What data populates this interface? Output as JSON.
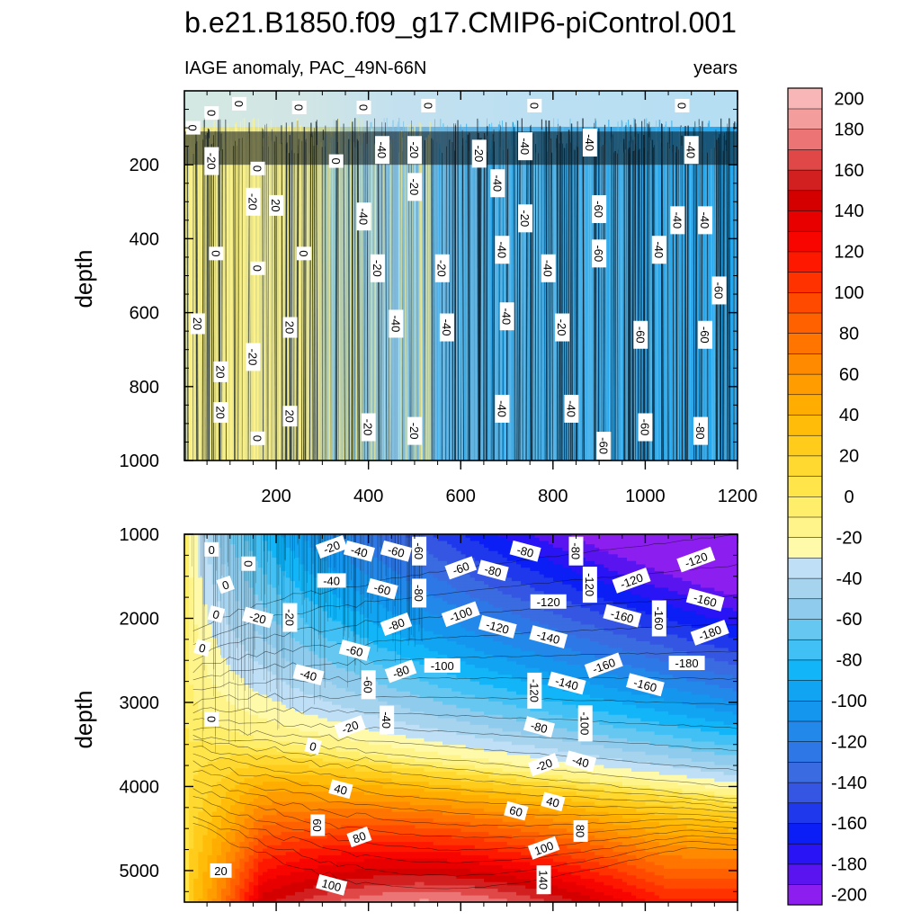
{
  "chart_data": [
    {
      "type": "heatmap",
      "title": "b.e21.B1850.f09_g17.CMIP6-piControl.001",
      "subtitle_left": "IAGE anomaly, PAC_49N-66N",
      "subtitle_right": "years",
      "ylabel": "depth",
      "xlabel": "",
      "xlim": [
        1,
        1200
      ],
      "ylim": [
        0,
        1000
      ],
      "y_reversed": true,
      "x_ticks": [
        200,
        400,
        600,
        800,
        1000,
        1200
      ],
      "x_tick_labels": [
        "200",
        "400",
        "600",
        "800",
        "1000",
        "1200"
      ],
      "y_ticks": [
        200,
        400,
        600,
        800,
        1000
      ],
      "y_tick_labels": [
        "200",
        "400",
        "600",
        "800",
        "1000"
      ],
      "contour_labels": [
        {
          "text": "0",
          "x": 60,
          "y": 60
        },
        {
          "text": "0",
          "x": 120,
          "y": 35
        },
        {
          "text": "0",
          "x": 250,
          "y": 45
        },
        {
          "text": "0",
          "x": 390,
          "y": 45
        },
        {
          "text": "0",
          "x": 530,
          "y": 40
        },
        {
          "text": "0",
          "x": 760,
          "y": 40
        },
        {
          "text": "0",
          "x": 1080,
          "y": 40
        },
        {
          "text": "0",
          "x": 20,
          "y": 100
        },
        {
          "text": "-20",
          "x": 60,
          "y": 190
        },
        {
          "text": "0",
          "x": 160,
          "y": 210
        },
        {
          "text": "0",
          "x": 330,
          "y": 190
        },
        {
          "text": "-40",
          "x": 430,
          "y": 160
        },
        {
          "text": "-20",
          "x": 500,
          "y": 160
        },
        {
          "text": "-20",
          "x": 640,
          "y": 170
        },
        {
          "text": "-40",
          "x": 740,
          "y": 150
        },
        {
          "text": "-40",
          "x": 880,
          "y": 140
        },
        {
          "text": "-40",
          "x": 1100,
          "y": 160
        },
        {
          "text": "-20",
          "x": 150,
          "y": 300
        },
        {
          "text": "20",
          "x": 200,
          "y": 310
        },
        {
          "text": "-40",
          "x": 390,
          "y": 340
        },
        {
          "text": "-20",
          "x": 500,
          "y": 260
        },
        {
          "text": "-40",
          "x": 680,
          "y": 250
        },
        {
          "text": "-20",
          "x": 740,
          "y": 345
        },
        {
          "text": "-60",
          "x": 900,
          "y": 320
        },
        {
          "text": "-40",
          "x": 1070,
          "y": 350
        },
        {
          "text": "-40",
          "x": 1130,
          "y": 350
        },
        {
          "text": "0",
          "x": 70,
          "y": 440
        },
        {
          "text": "0",
          "x": 160,
          "y": 480
        },
        {
          "text": "0",
          "x": 260,
          "y": 440
        },
        {
          "text": "-20",
          "x": 420,
          "y": 480
        },
        {
          "text": "-20",
          "x": 560,
          "y": 480
        },
        {
          "text": "-40",
          "x": 690,
          "y": 430
        },
        {
          "text": "-40",
          "x": 790,
          "y": 480
        },
        {
          "text": "-60",
          "x": 900,
          "y": 440
        },
        {
          "text": "-40",
          "x": 1030,
          "y": 430
        },
        {
          "text": "-60",
          "x": 1160,
          "y": 540
        },
        {
          "text": "20",
          "x": 30,
          "y": 630
        },
        {
          "text": "20",
          "x": 80,
          "y": 760
        },
        {
          "text": "-20",
          "x": 150,
          "y": 720
        },
        {
          "text": "20",
          "x": 230,
          "y": 640
        },
        {
          "text": "-40",
          "x": 460,
          "y": 630
        },
        {
          "text": "-40",
          "x": 570,
          "y": 640
        },
        {
          "text": "-40",
          "x": 700,
          "y": 610
        },
        {
          "text": "-20",
          "x": 820,
          "y": 640
        },
        {
          "text": "-60",
          "x": 990,
          "y": 660
        },
        {
          "text": "-60",
          "x": 1130,
          "y": 660
        },
        {
          "text": "20",
          "x": 80,
          "y": 870
        },
        {
          "text": "0",
          "x": 160,
          "y": 940
        },
        {
          "text": "20",
          "x": 230,
          "y": 880
        },
        {
          "text": "-20",
          "x": 400,
          "y": 910
        },
        {
          "text": "-20",
          "x": 500,
          "y": 920
        },
        {
          "text": "-40",
          "x": 690,
          "y": 860
        },
        {
          "text": "-40",
          "x": 840,
          "y": 860
        },
        {
          "text": "-60",
          "x": 1000,
          "y": 910
        },
        {
          "text": "-60",
          "x": 910,
          "y": 960
        },
        {
          "text": "-80",
          "x": 1120,
          "y": 920
        }
      ]
    },
    {
      "type": "heatmap",
      "title": "",
      "ylabel": "depth",
      "xlabel": "",
      "xlim": [
        1,
        1200
      ],
      "ylim": [
        1000,
        5375
      ],
      "y_reversed": true,
      "x_ticks": [
        200,
        400,
        600,
        800,
        1000,
        1200
      ],
      "y_ticks": [
        1000,
        2000,
        3000,
        4000,
        5000
      ],
      "y_tick_labels": [
        "1000",
        "2000",
        "3000",
        "4000",
        "5000"
      ],
      "contour_labels": [
        {
          "text": "0",
          "x": 60,
          "y": 1180
        },
        {
          "text": "0",
          "x": 140,
          "y": 1350
        },
        {
          "text": "0",
          "x": 90,
          "y": 1600
        },
        {
          "text": "0",
          "x": 70,
          "y": 1950
        },
        {
          "text": "0",
          "x": 40,
          "y": 2350
        },
        {
          "text": "0",
          "x": 60,
          "y": 3200
        },
        {
          "text": "-20",
          "x": 320,
          "y": 1150
        },
        {
          "text": "-40",
          "x": 380,
          "y": 1200
        },
        {
          "text": "-60",
          "x": 460,
          "y": 1200
        },
        {
          "text": "-60",
          "x": 510,
          "y": 1200
        },
        {
          "text": "-60",
          "x": 600,
          "y": 1400
        },
        {
          "text": "-80",
          "x": 670,
          "y": 1430
        },
        {
          "text": "-80",
          "x": 740,
          "y": 1200
        },
        {
          "text": "-80",
          "x": 850,
          "y": 1200
        },
        {
          "text": "-120",
          "x": 1110,
          "y": 1300
        },
        {
          "text": "-40",
          "x": 320,
          "y": 1550
        },
        {
          "text": "-60",
          "x": 430,
          "y": 1650
        },
        {
          "text": "-80",
          "x": 510,
          "y": 1700
        },
        {
          "text": "-100",
          "x": 600,
          "y": 1950
        },
        {
          "text": "-120",
          "x": 680,
          "y": 2100
        },
        {
          "text": "-120",
          "x": 790,
          "y": 1800
        },
        {
          "text": "-120",
          "x": 880,
          "y": 1600
        },
        {
          "text": "-120",
          "x": 970,
          "y": 1550
        },
        {
          "text": "-160",
          "x": 1130,
          "y": 1780
        },
        {
          "text": "-20",
          "x": 160,
          "y": 1990
        },
        {
          "text": "-20",
          "x": 230,
          "y": 1990
        },
        {
          "text": "-80",
          "x": 460,
          "y": 2070
        },
        {
          "text": "-140",
          "x": 790,
          "y": 2220
        },
        {
          "text": "-160",
          "x": 950,
          "y": 1970
        },
        {
          "text": "-160",
          "x": 1030,
          "y": 2000
        },
        {
          "text": "-180",
          "x": 1140,
          "y": 2170
        },
        {
          "text": "-60",
          "x": 370,
          "y": 2380
        },
        {
          "text": "-40",
          "x": 270,
          "y": 2670
        },
        {
          "text": "-60",
          "x": 400,
          "y": 2790
        },
        {
          "text": "-80",
          "x": 470,
          "y": 2630
        },
        {
          "text": "-100",
          "x": 560,
          "y": 2560
        },
        {
          "text": "-140",
          "x": 830,
          "y": 2770
        },
        {
          "text": "-120",
          "x": 760,
          "y": 2860
        },
        {
          "text": "-160",
          "x": 910,
          "y": 2560
        },
        {
          "text": "-160",
          "x": 1000,
          "y": 2790
        },
        {
          "text": "-180",
          "x": 1090,
          "y": 2530
        },
        {
          "text": "-40",
          "x": 440,
          "y": 3210
        },
        {
          "text": "-20",
          "x": 360,
          "y": 3290
        },
        {
          "text": "0",
          "x": 280,
          "y": 3520
        },
        {
          "text": "-80",
          "x": 770,
          "y": 3290
        },
        {
          "text": "-100",
          "x": 870,
          "y": 3250
        },
        {
          "text": "-20",
          "x": 780,
          "y": 3740
        },
        {
          "text": "-40",
          "x": 860,
          "y": 3700
        },
        {
          "text": "40",
          "x": 340,
          "y": 4030
        },
        {
          "text": "60",
          "x": 290,
          "y": 4460
        },
        {
          "text": "80",
          "x": 380,
          "y": 4600
        },
        {
          "text": "60",
          "x": 720,
          "y": 4290
        },
        {
          "text": "40",
          "x": 800,
          "y": 4180
        },
        {
          "text": "80",
          "x": 860,
          "y": 4530
        },
        {
          "text": "100",
          "x": 780,
          "y": 4730
        },
        {
          "text": "20",
          "x": 80,
          "y": 5000
        },
        {
          "text": "100",
          "x": 320,
          "y": 5170
        },
        {
          "text": "140",
          "x": 780,
          "y": 5110
        }
      ]
    },
    {
      "type": "colorbar",
      "levels": [
        -200,
        -190,
        -180,
        -170,
        -160,
        -150,
        -140,
        -130,
        -120,
        -110,
        -100,
        -90,
        -80,
        -70,
        -60,
        -50,
        -40,
        -30,
        -20,
        -10,
        0,
        10,
        20,
        30,
        40,
        50,
        60,
        70,
        80,
        90,
        100,
        110,
        120,
        130,
        140,
        150,
        160,
        170,
        180,
        190,
        200
      ],
      "tick_labels": [
        "-200",
        "-180",
        "-160",
        "-140",
        "-120",
        "-100",
        "-80",
        "-60",
        "-40",
        "-20",
        "0",
        "20",
        "40",
        "60",
        "80",
        "100",
        "120",
        "140",
        "160",
        "180",
        "200"
      ],
      "colors": [
        "#8d1ef0",
        "#5a14f0",
        "#2814f5",
        "#0a1ef5",
        "#2038ec",
        "#3456e2",
        "#3a6be0",
        "#2d78e6",
        "#2288ea",
        "#1496ee",
        "#10a4f3",
        "#12b6f8",
        "#40c0f5",
        "#66c8f0",
        "#8ecbec",
        "#a6d3ee",
        "#bedff5",
        "#fffaaa",
        "#fff48a",
        "#ffee6a",
        "#ffe44a",
        "#ffd830",
        "#ffcc1c",
        "#ffbc08",
        "#ffad00",
        "#ff9c00",
        "#ff8a00",
        "#ff7500",
        "#ff6000",
        "#ff4a00",
        "#ff3200",
        "#ff1800",
        "#f80500",
        "#e80000",
        "#d40000",
        "#d22020",
        "#e04848",
        "#ec7474",
        "#f39d9d",
        "#f8b6b6"
      ]
    }
  ]
}
